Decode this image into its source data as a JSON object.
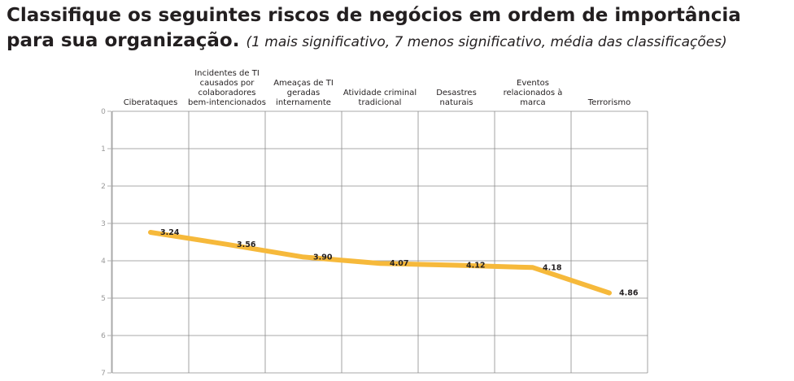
{
  "header": {
    "title": "Classifique os seguintes riscos de negócios em ordem de importância para sua organização.",
    "subtitle": "(1 mais significativo, 7 menos significativo, média das classificações)"
  },
  "chart_data": {
    "type": "line",
    "categories": [
      [
        "Ciberataques"
      ],
      [
        "Incidentes de TI",
        "causados por",
        "colaboradores",
        "bem-intencionados"
      ],
      [
        "Ameaças de TI",
        "geradas",
        "internamente"
      ],
      [
        "Atividade criminal",
        "tradicional"
      ],
      [
        "Desastres",
        "naturais"
      ],
      [
        "Eventos",
        "relacionados à",
        "marca"
      ],
      [
        "Terrorismo"
      ]
    ],
    "values": [
      3.24,
      3.56,
      3.9,
      4.07,
      4.12,
      4.18,
      4.86
    ],
    "value_labels": [
      "3.24",
      "3.56",
      "3.90",
      "4.07",
      "4.12",
      "4.18",
      "4.86"
    ],
    "ylim": [
      0,
      7
    ],
    "y_ticks": [
      "0",
      "1",
      "2",
      "3",
      "4",
      "5",
      "6",
      "7"
    ],
    "y_inverted": true,
    "grid": true,
    "colors": {
      "line": "#f6b93b",
      "grid": "#8c8c8c",
      "axis": "#b0b0b0"
    }
  }
}
